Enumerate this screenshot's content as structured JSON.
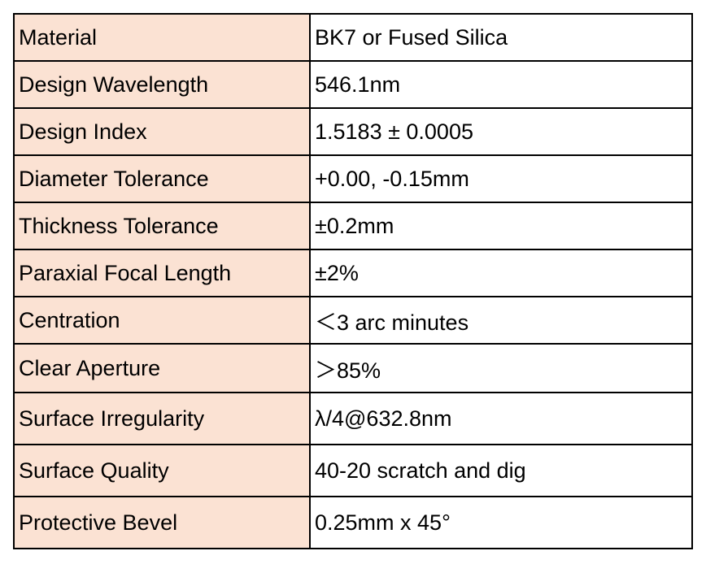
{
  "spec_table": {
    "rows": [
      {
        "label": "Material",
        "value": "BK7 or Fused Silica"
      },
      {
        "label": "Design Wavelength",
        "value": "546.1nm"
      },
      {
        "label": "Design Index",
        "value": "1.5183 ± 0.0005"
      },
      {
        "label": "Diameter Tolerance",
        "value": "+0.00, -0.15mm"
      },
      {
        "label": "Thickness Tolerance",
        "value": "±0.2mm"
      },
      {
        "label": "Paraxial Focal Length",
        "value": "±2%"
      },
      {
        "label": "Centration",
        "value": "＜3 arc minutes"
      },
      {
        "label": "Clear Aperture",
        "value": "＞85%"
      },
      {
        "label": "Surface Irregularity",
        "value": "λ/4@632.8nm"
      },
      {
        "label": "Surface Quality",
        "value": "40-20 scratch and dig"
      },
      {
        "label": "Protective Bevel",
        "value": "0.25mm x 45°"
      }
    ]
  }
}
